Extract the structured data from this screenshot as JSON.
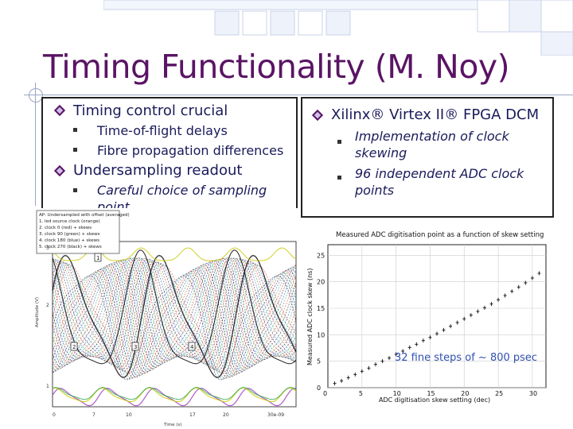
{
  "slide": {
    "title": "Timing Functionality (M. Noy)",
    "left_box": {
      "items": [
        {
          "label": "Timing control crucial",
          "subitems": [
            "Time-of-flight delays",
            "Fibre propagation differences"
          ]
        },
        {
          "label": "Undersampling readout",
          "subitems": [
            "Careful choice of sampling point"
          ]
        }
      ]
    },
    "right_box": {
      "heading": "Xilinx® Virtex II® FPGA DCM",
      "subitems": [
        "Implementation of clock skewing",
        "96 independent ADC clock points"
      ]
    }
  },
  "scope": {
    "legend": [
      "AP: Undersampled with offset (averaged)",
      "1. led source clock (orange)",
      "2. clock 0 (red) + skews",
      "3. clock 90 (green) + skews",
      "4. clock 180 (blue) + skews",
      "5. clock 270 (black) + skews"
    ],
    "marker_labels": [
      "1",
      "2",
      "3",
      "4"
    ],
    "x_label": "Time (s)",
    "x_ticks": [
      "0",
      "7",
      "10",
      "17",
      "20",
      "30e-09"
    ],
    "y_label": "Amplitude (V)",
    "y_ticks": [
      "3",
      "2",
      "1"
    ],
    "colors": {
      "orange": "#e08a00",
      "red": "#d02020",
      "green": "#20a040",
      "blue": "#2040c0",
      "black": "#111111",
      "purple": "#a040c0",
      "yellow": "#c8c800"
    }
  },
  "chart_data": {
    "type": "scatter",
    "title": "Measured ADC digitisation point as a function of skew setting",
    "xlabel": "ADC digitisation skew setting (dec)",
    "ylabel": "Measured ADC clock skew (ns)",
    "xlim": [
      0,
      32
    ],
    "ylim": [
      0,
      27
    ],
    "x_ticks": [
      5,
      10,
      15,
      20,
      25,
      30
    ],
    "y_ticks": [
      0,
      5,
      10,
      15,
      20,
      25
    ],
    "x_tick_labels": [
      "5",
      "10",
      "15",
      "20",
      "25",
      "30"
    ],
    "y_tick_labels": [
      "0",
      "5",
      "10",
      "15",
      "20",
      "25"
    ],
    "origin_label": "0",
    "points": [
      [
        1,
        0.8
      ],
      [
        2,
        1.3
      ],
      [
        3,
        1.9
      ],
      [
        4,
        2.5
      ],
      [
        5,
        3.1
      ],
      [
        6,
        3.7
      ],
      [
        7,
        4.4
      ],
      [
        8,
        5.0
      ],
      [
        9,
        5.6
      ],
      [
        10,
        6.3
      ],
      [
        11,
        6.9
      ],
      [
        12,
        7.6
      ],
      [
        13,
        8.2
      ],
      [
        14,
        8.9
      ],
      [
        15,
        9.5
      ],
      [
        16,
        10.2
      ],
      [
        17,
        10.9
      ],
      [
        18,
        11.6
      ],
      [
        19,
        12.3
      ],
      [
        20,
        13.0
      ],
      [
        21,
        13.7
      ],
      [
        22,
        14.4
      ],
      [
        23,
        15.1
      ],
      [
        24,
        15.8
      ],
      [
        25,
        16.6
      ],
      [
        26,
        17.4
      ],
      [
        27,
        18.2
      ],
      [
        28,
        19.0
      ],
      [
        29,
        19.8
      ],
      [
        30,
        20.7
      ],
      [
        31,
        21.6
      ]
    ],
    "annotation": "32 fine steps of ~ 800 psec"
  }
}
